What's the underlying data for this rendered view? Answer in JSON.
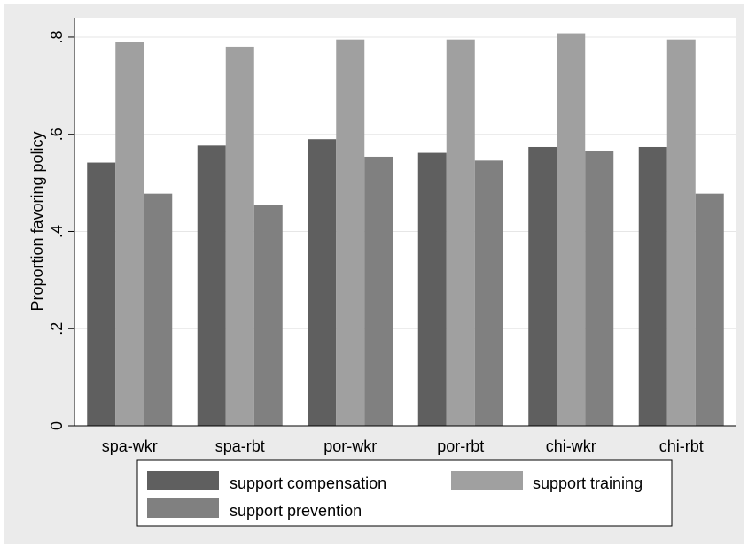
{
  "chart_data": {
    "type": "bar",
    "title": "",
    "xlabel": "",
    "ylabel": "Proportion favoring policy",
    "ylim": [
      0,
      0.8
    ],
    "yticks": [
      {
        "value": 0,
        "label": "0"
      },
      {
        "value": 0.2,
        "label": ".2"
      },
      {
        "value": 0.4,
        "label": ".4"
      },
      {
        "value": 0.6,
        "label": ".6"
      },
      {
        "value": 0.8,
        "label": ".8"
      }
    ],
    "grid": true,
    "legend_position": "bottom",
    "categories": [
      "spa-wkr",
      "spa-rbt",
      "por-wkr",
      "por-rbt",
      "chi-wkr",
      "chi-rbt"
    ],
    "series": [
      {
        "name": "support compensation",
        "color": "#5f5f5f",
        "values": [
          0.542,
          0.577,
          0.59,
          0.562,
          0.574,
          0.574
        ]
      },
      {
        "name": "support training",
        "color": "#a0a0a0",
        "values": [
          0.79,
          0.78,
          0.795,
          0.795,
          0.808,
          0.795
        ]
      },
      {
        "name": "support prevention",
        "color": "#808080",
        "values": [
          0.478,
          0.455,
          0.554,
          0.546,
          0.566,
          0.478
        ]
      }
    ],
    "colors": {
      "background": "#ebebeb",
      "plot_area": "#ffffff",
      "grid": "#e6e6e6",
      "axis": "#000000"
    }
  }
}
